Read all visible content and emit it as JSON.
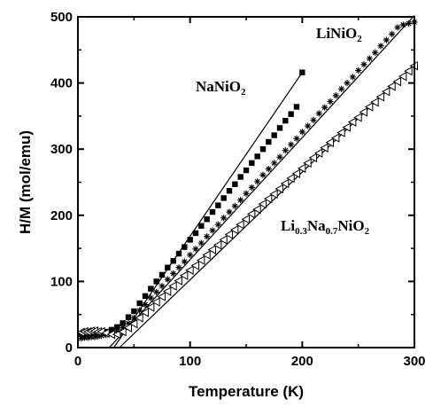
{
  "chart_data": {
    "type": "scatter",
    "title": "",
    "xlabel": "Temperature (K)",
    "ylabel": "H/M (mol/emu)",
    "xlim": [
      0,
      300
    ],
    "ylim": [
      0,
      500
    ],
    "xticks": [
      "0",
      "100",
      "200",
      "300"
    ],
    "yticks": [
      "0",
      "100",
      "200",
      "300",
      "400",
      "500"
    ],
    "grid": false,
    "legend": "none",
    "series": [
      {
        "name_parts": [
          {
            "t": "NaNiO"
          },
          {
            "t": "2",
            "sub": true
          }
        ],
        "marker": "filled-square",
        "x": [
          3,
          6,
          9,
          12,
          15,
          18,
          21,
          25,
          30,
          35,
          40,
          45,
          50,
          55,
          60,
          65,
          70,
          75,
          80,
          85,
          90,
          95,
          100,
          105,
          110,
          115,
          120,
          125,
          130,
          135,
          140,
          145,
          150,
          155,
          160,
          165,
          170,
          175,
          180,
          185,
          190,
          195,
          200
        ],
        "y": [
          20,
          21,
          21,
          22,
          22,
          23,
          23,
          24,
          27,
          31,
          37,
          46,
          55,
          67,
          78,
          89,
          100,
          110,
          121,
          131,
          142,
          152,
          163,
          173,
          184,
          194,
          205,
          215,
          226,
          237,
          247,
          258,
          268,
          279,
          289,
          300,
          311,
          321,
          332,
          343,
          353,
          364,
          416
        ],
        "fit": {
          "x": [
            32,
            200
          ],
          "y": [
            0,
            416
          ]
        }
      },
      {
        "name_parts": [
          {
            "t": "LiNiO"
          },
          {
            "t": "2",
            "sub": true
          }
        ],
        "marker": "star",
        "x": [
          3,
          6,
          9,
          12,
          15,
          18,
          21,
          25,
          30,
          35,
          40,
          45,
          50,
          55,
          60,
          65,
          70,
          75,
          80,
          85,
          90,
          95,
          100,
          105,
          110,
          115,
          120,
          125,
          130,
          135,
          140,
          145,
          150,
          155,
          160,
          165,
          170,
          175,
          180,
          185,
          190,
          195,
          200,
          205,
          210,
          215,
          220,
          225,
          230,
          235,
          240,
          245,
          250,
          255,
          260,
          265,
          270,
          275,
          280,
          285,
          290,
          295,
          300
        ],
        "y": [
          14,
          15,
          15,
          16,
          16,
          17,
          18,
          19,
          21,
          25,
          30,
          37,
          45,
          56,
          65,
          75,
          84,
          93,
          103,
          112,
          121,
          130,
          140,
          149,
          158,
          168,
          177,
          186,
          196,
          205,
          214,
          223,
          233,
          242,
          251,
          261,
          270,
          279,
          288,
          298,
          307,
          316,
          326,
          335,
          344,
          354,
          363,
          372,
          381,
          391,
          400,
          409,
          419,
          428,
          437,
          446,
          456,
          465,
          474,
          484,
          488,
          490,
          492
        ],
        "fit": {
          "x": [
            28,
            300
          ],
          "y": [
            0,
            502
          ]
        }
      },
      {
        "name_parts": [
          {
            "t": "Li"
          },
          {
            "t": "0.3",
            "sub": true
          },
          {
            "t": "Na"
          },
          {
            "t": "0.7",
            "sub": true
          },
          {
            "t": "NiO"
          },
          {
            "t": "2",
            "sub": true
          }
        ],
        "marker": "open-triangle-left",
        "x": [
          3,
          6,
          9,
          12,
          15,
          18,
          21,
          25,
          30,
          35,
          40,
          45,
          50,
          55,
          60,
          65,
          70,
          75,
          80,
          85,
          90,
          95,
          100,
          105,
          110,
          115,
          120,
          125,
          130,
          135,
          140,
          145,
          150,
          155,
          160,
          165,
          170,
          175,
          180,
          185,
          190,
          195,
          200,
          205,
          210,
          215,
          220,
          225,
          230,
          235,
          240,
          245,
          250,
          255,
          260,
          265,
          270,
          275,
          280,
          285,
          290,
          295,
          300
        ],
        "y": [
          23,
          24,
          24,
          25,
          25,
          24,
          24,
          22,
          20,
          20,
          24,
          30,
          36,
          45,
          53,
          61,
          69,
          77,
          85,
          93,
          101,
          109,
          117,
          124,
          132,
          140,
          148,
          155,
          163,
          171,
          178,
          186,
          194,
          202,
          209,
          217,
          225,
          232,
          240,
          248,
          256,
          263,
          271,
          279,
          287,
          294,
          302,
          310,
          317,
          325,
          333,
          341,
          348,
          356,
          364,
          371,
          379,
          387,
          395,
          402,
          410,
          418,
          426
        ],
        "fit": {
          "x": [
            37,
            300
          ],
          "y": [
            0,
            428
          ]
        }
      }
    ]
  }
}
